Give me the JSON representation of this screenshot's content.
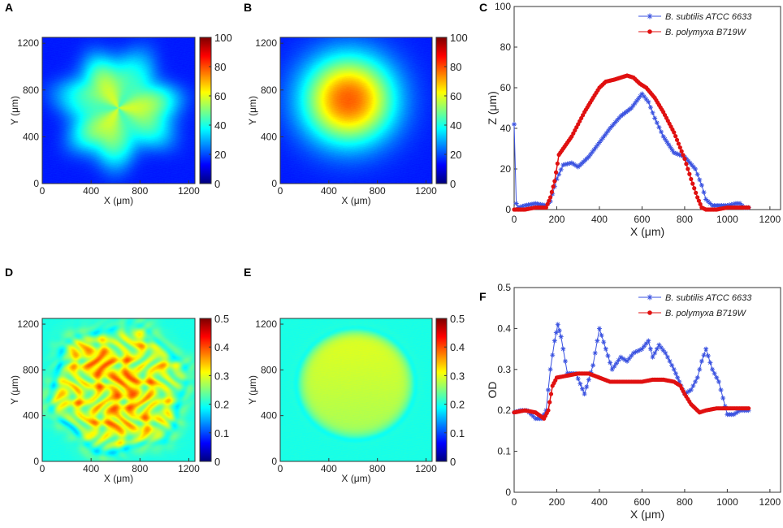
{
  "colors": {
    "blue": "#3a52e0",
    "red": "#e01010",
    "axis": "#333333"
  },
  "chart_data": [
    {
      "id": "A",
      "letter": "A",
      "type": "heatmap",
      "xlabel": "X (μm)",
      "ylabel": "Y (μm)",
      "xlim": [
        0,
        1250
      ],
      "ylim": [
        0,
        1250
      ],
      "xticks": [
        0,
        400,
        800,
        1200
      ],
      "yticks": [
        0,
        400,
        800,
        1200
      ],
      "colorbar": {
        "range": [
          0,
          100
        ],
        "ticks": [
          0,
          20,
          40,
          60,
          80,
          100
        ]
      },
      "field": {
        "shape": "irregular",
        "center": [
          620,
          650
        ],
        "radius": 450,
        "peak": 58,
        "base": 15
      }
    },
    {
      "id": "B",
      "letter": "B",
      "type": "heatmap",
      "xlabel": "X (μm)",
      "ylabel": "Y (μm)",
      "xlim": [
        0,
        1250
      ],
      "ylim": [
        0,
        1250
      ],
      "xticks": [
        0,
        400,
        800,
        1200
      ],
      "yticks": [
        0,
        400,
        800,
        1200
      ],
      "colorbar": {
        "range": [
          0,
          100
        ],
        "ticks": [
          0,
          20,
          40,
          60,
          80,
          100
        ]
      },
      "field": {
        "shape": "circle",
        "center": [
          560,
          720
        ],
        "radius": 470,
        "peak": 78,
        "base": 15
      }
    },
    {
      "id": "C",
      "letter": "C",
      "type": "line",
      "xlabel": "X (μm)",
      "ylabel": "Z (μm)",
      "xlim": [
        0,
        1250
      ],
      "ylim": [
        0,
        100
      ],
      "xticks": [
        0,
        200,
        400,
        600,
        800,
        1000,
        1200
      ],
      "yticks": [
        0,
        20,
        40,
        60,
        80,
        100
      ],
      "series": [
        {
          "name": "B. subtilis ATCC 6633",
          "color": "#3a52e0",
          "marker": "star",
          "x": [
            0,
            10,
            20,
            50,
            100,
            150,
            170,
            200,
            230,
            270,
            300,
            350,
            400,
            450,
            500,
            550,
            600,
            630,
            660,
            700,
            750,
            800,
            850,
            880,
            900,
            930,
            1000,
            1040,
            1060,
            1080,
            1100
          ],
          "y": [
            42,
            3,
            1,
            2,
            3,
            2,
            4,
            15,
            22,
            23,
            21,
            26,
            33,
            40,
            46,
            50,
            57,
            53,
            45,
            36,
            28,
            26,
            20,
            12,
            5,
            2,
            2,
            3,
            3,
            1,
            1
          ]
        },
        {
          "name": "B. polymyxa B719W",
          "color": "#e01010",
          "marker": "dot",
          "x": [
            0,
            50,
            100,
            150,
            170,
            190,
            210,
            230,
            250,
            270,
            300,
            330,
            370,
            400,
            430,
            470,
            500,
            530,
            560,
            590,
            620,
            660,
            700,
            750,
            800,
            830,
            860,
            880,
            900,
            950,
            1000,
            1050,
            1100
          ],
          "y": [
            0,
            0,
            1,
            1,
            6,
            14,
            27,
            30,
            33,
            36,
            42,
            48,
            55,
            60,
            63,
            64,
            65,
            66,
            65,
            62,
            60,
            55,
            48,
            38,
            25,
            15,
            6,
            1,
            0,
            0,
            1,
            1,
            1
          ]
        }
      ],
      "legend": "top-right"
    },
    {
      "id": "D",
      "letter": "D",
      "type": "heatmap",
      "xlabel": "X (μm)",
      "ylabel": "Y (μm)",
      "xlim": [
        0,
        1250
      ],
      "ylim": [
        0,
        1250
      ],
      "xticks": [
        0,
        400,
        800,
        1200
      ],
      "yticks": [
        0,
        400,
        800,
        1200
      ],
      "colorbar": {
        "range": [
          0,
          0.5
        ],
        "ticks": [
          0,
          0.1,
          0.2,
          0.3,
          0.4,
          0.5
        ]
      },
      "field": {
        "shape": "wrinkled",
        "center": [
          620,
          640
        ],
        "radius": 560,
        "peak": 0.4,
        "base": 0.2
      }
    },
    {
      "id": "E",
      "letter": "E",
      "type": "heatmap",
      "xlabel": "X (μm)",
      "ylabel": "Y (μm)",
      "xlim": [
        0,
        1250
      ],
      "ylim": [
        0,
        1250
      ],
      "xticks": [
        0,
        400,
        800,
        1200
      ],
      "yticks": [
        0,
        400,
        800,
        1200
      ],
      "colorbar": {
        "range": [
          0,
          0.5
        ],
        "ticks": [
          0,
          0.1,
          0.2,
          0.3,
          0.4,
          0.5
        ]
      },
      "field": {
        "shape": "circle-flat",
        "center": [
          620,
          680
        ],
        "radius": 470,
        "peak": 0.285,
        "base": 0.2
      }
    },
    {
      "id": "F",
      "letter": "F",
      "type": "line",
      "xlabel": "X (μm)",
      "ylabel": "OD",
      "xlim": [
        0,
        1250
      ],
      "ylim": [
        0,
        0.5
      ],
      "xticks": [
        0,
        200,
        400,
        600,
        800,
        1000,
        1200
      ],
      "yticks": [
        0,
        0.1,
        0.2,
        0.3,
        0.4,
        0.5
      ],
      "series": [
        {
          "name": "B. subtilis ATCC 6633",
          "color": "#3a52e0",
          "marker": "star",
          "x": [
            0,
            30,
            60,
            100,
            130,
            150,
            170,
            190,
            205,
            220,
            250,
            290,
            330,
            370,
            400,
            430,
            460,
            500,
            530,
            560,
            600,
            630,
            650,
            680,
            710,
            750,
            800,
            830,
            860,
            880,
            900,
            930,
            960,
            980,
            1000,
            1030,
            1060,
            1100
          ],
          "y": [
            0.195,
            0.2,
            0.2,
            0.18,
            0.18,
            0.2,
            0.3,
            0.37,
            0.41,
            0.38,
            0.29,
            0.29,
            0.24,
            0.31,
            0.4,
            0.35,
            0.3,
            0.33,
            0.32,
            0.34,
            0.35,
            0.37,
            0.33,
            0.36,
            0.34,
            0.3,
            0.24,
            0.25,
            0.28,
            0.32,
            0.35,
            0.3,
            0.27,
            0.23,
            0.19,
            0.19,
            0.2,
            0.2
          ]
        },
        {
          "name": "B. polymyxa B719W",
          "color": "#e01010",
          "marker": "dot",
          "x": [
            0,
            50,
            100,
            140,
            160,
            180,
            200,
            250,
            300,
            350,
            400,
            450,
            500,
            550,
            600,
            650,
            700,
            750,
            780,
            800,
            830,
            870,
            900,
            950,
            1000,
            1050,
            1100
          ],
          "y": [
            0.195,
            0.2,
            0.195,
            0.18,
            0.2,
            0.26,
            0.28,
            0.285,
            0.29,
            0.29,
            0.28,
            0.27,
            0.27,
            0.27,
            0.27,
            0.275,
            0.275,
            0.27,
            0.26,
            0.24,
            0.215,
            0.195,
            0.2,
            0.205,
            0.205,
            0.205,
            0.205
          ]
        }
      ],
      "legend": "top-right"
    }
  ]
}
